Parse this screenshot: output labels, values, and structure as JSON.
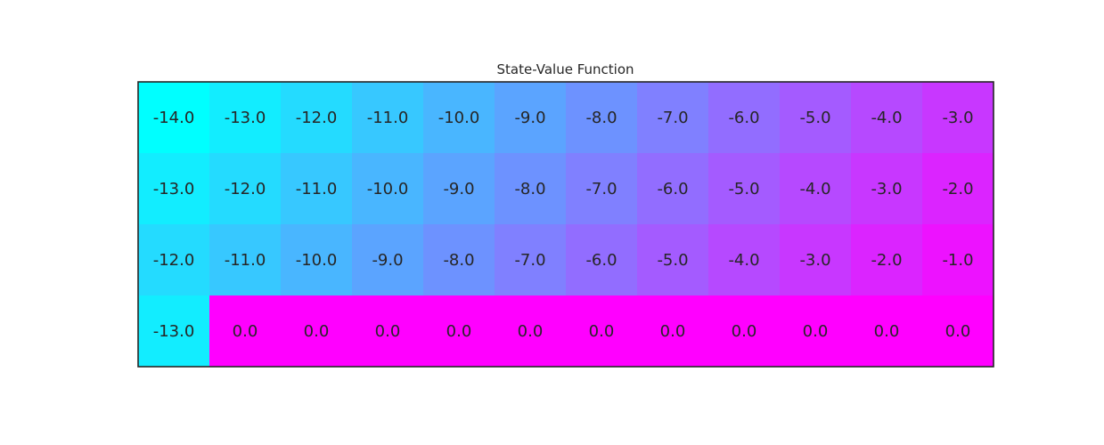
{
  "chart_data": {
    "type": "heatmap",
    "title": "State-Value Function",
    "xlabel": "",
    "ylabel": "",
    "grid": false,
    "colormap": "cool",
    "colormap_colors": {
      "min": "#00ffff",
      "max": "#ff00ff"
    },
    "value_range": [
      -14.0,
      0.0
    ],
    "rows": 4,
    "cols": 12,
    "values": [
      [
        -14.0,
        -13.0,
        -12.0,
        -11.0,
        -10.0,
        -9.0,
        -8.0,
        -7.0,
        -6.0,
        -5.0,
        -4.0,
        -3.0
      ],
      [
        -13.0,
        -12.0,
        -11.0,
        -10.0,
        -9.0,
        -8.0,
        -7.0,
        -6.0,
        -5.0,
        -4.0,
        -3.0,
        -2.0
      ],
      [
        -12.0,
        -11.0,
        -10.0,
        -9.0,
        -8.0,
        -7.0,
        -6.0,
        -5.0,
        -4.0,
        -3.0,
        -2.0,
        -1.0
      ],
      [
        -13.0,
        0.0,
        0.0,
        0.0,
        0.0,
        0.0,
        0.0,
        0.0,
        0.0,
        0.0,
        0.0,
        0.0
      ]
    ]
  }
}
